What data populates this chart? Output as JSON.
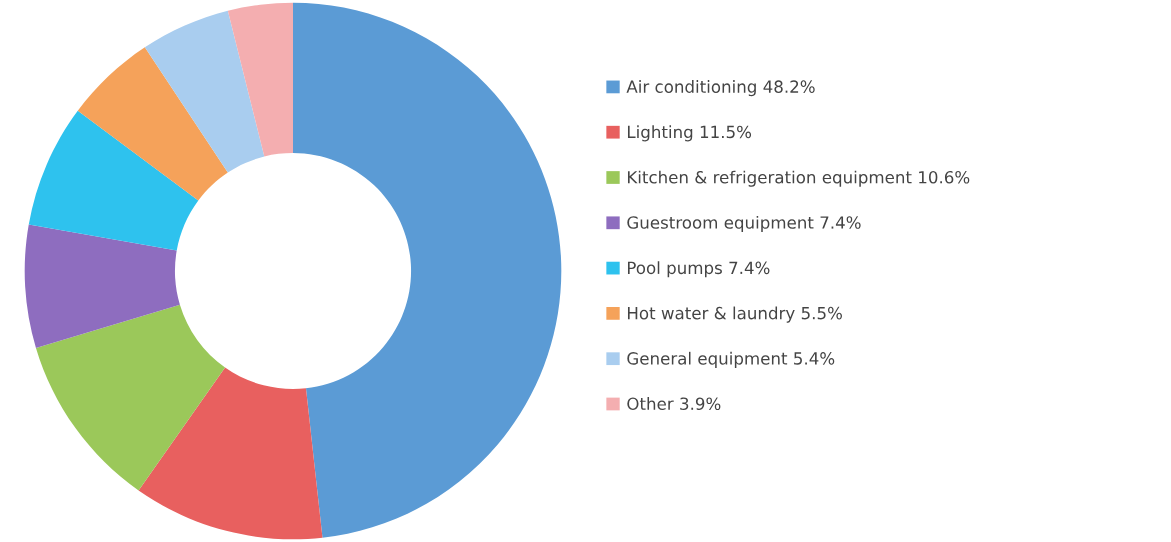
{
  "chart_data": {
    "type": "donut",
    "categories": [
      "Air conditioning",
      "Lighting",
      "Kitchen & refrigeration equipment",
      "Guestroom equipment",
      "Pool pumps",
      "Hot water & laundry",
      "General equipment",
      "Other"
    ],
    "values": [
      48.2,
      11.5,
      10.6,
      7.4,
      7.4,
      5.5,
      5.4,
      3.9
    ],
    "value_labels": [
      "48.2%",
      "11.5%",
      "10.6%",
      "7.4%",
      "7.4%",
      "5.5%",
      "5.4%",
      "3.9%"
    ],
    "colors": [
      "#5b9bd5",
      "#e8605f",
      "#9bc85a",
      "#8e6dbf",
      "#2ec2ee",
      "#f5a25a",
      "#a9cdef",
      "#f4aeb0"
    ],
    "legend": "right"
  }
}
